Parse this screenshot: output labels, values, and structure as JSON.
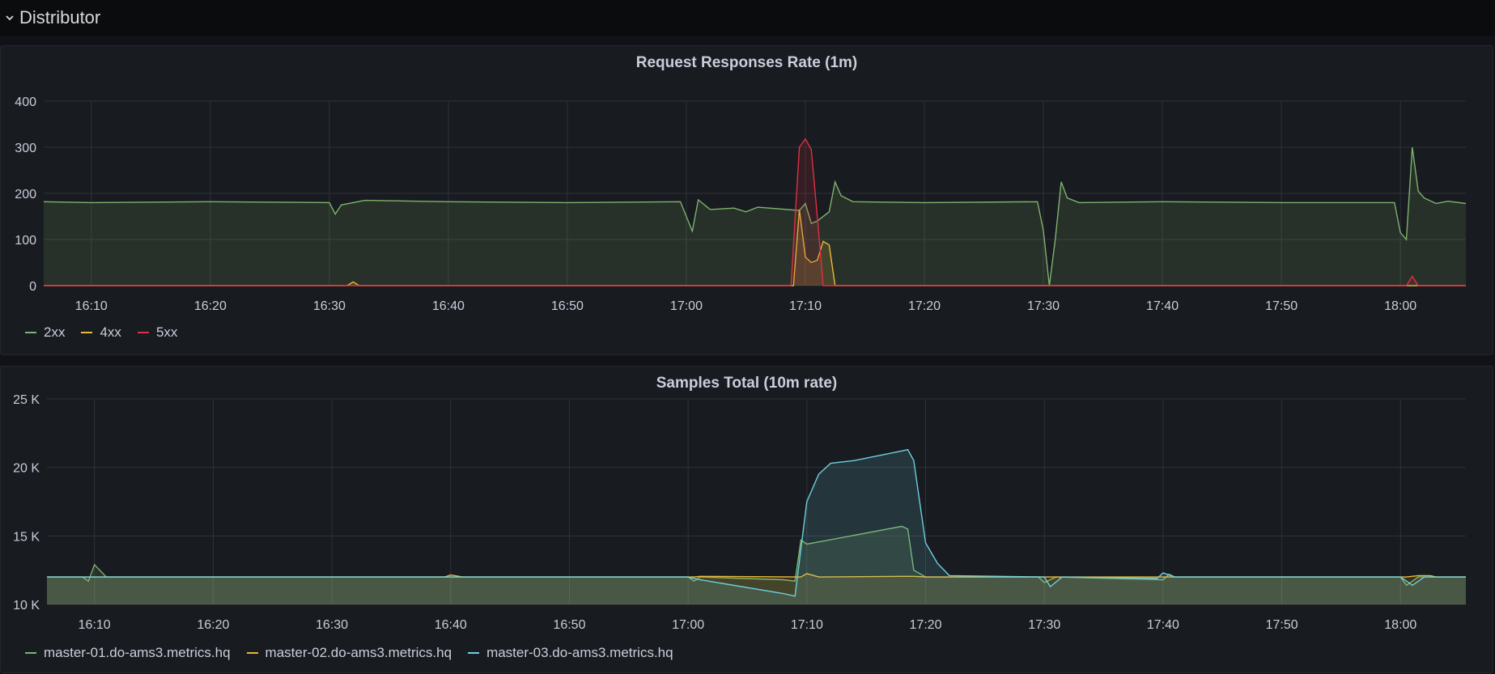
{
  "row": {
    "title": "Distributor",
    "toggle_icon": "chevron-down-icon"
  },
  "panels": [
    {
      "title": "Request Responses Rate (1m)",
      "legend": [
        {
          "label": "2xx",
          "color": "#7eb26d"
        },
        {
          "label": "4xx",
          "color": "#eab839"
        },
        {
          "label": "5xx",
          "color": "#e02f44"
        }
      ]
    },
    {
      "title": "Samples Total (10m rate)",
      "legend": [
        {
          "label": "master-01.do-ams3.metrics.hq",
          "color": "#7eb26d"
        },
        {
          "label": "master-02.do-ams3.metrics.hq",
          "color": "#eab839"
        },
        {
          "label": "master-03.do-ams3.metrics.hq",
          "color": "#6ed0e0"
        }
      ]
    }
  ],
  "chart_data": [
    {
      "type": "area",
      "title": "Request Responses Rate (1m)",
      "ylim": [
        0,
        400
      ],
      "y_ticks": [
        "0",
        "100",
        "200",
        "300",
        "400"
      ],
      "x_ticks": [
        "16:10",
        "16:20",
        "16:30",
        "16:40",
        "16:50",
        "17:00",
        "17:10",
        "17:20",
        "17:30",
        "17:40",
        "17:50",
        "18:00"
      ],
      "grid": true,
      "legend_position": "bottom-left",
      "series": [
        {
          "name": "2xx",
          "color": "#7eb26d",
          "points": [
            [
              "16:06",
              182
            ],
            [
              "16:10",
              180
            ],
            [
              "16:20",
              182
            ],
            [
              "16:30",
              180
            ],
            [
              "16:30.5",
              155
            ],
            [
              "16:31",
              175
            ],
            [
              "16:33",
              185
            ],
            [
              "16:40",
              182
            ],
            [
              "16:50",
              180
            ],
            [
              "16:59.5",
              182
            ],
            [
              "17:00.5",
              118
            ],
            [
              "17:01",
              186
            ],
            [
              "17:02",
              165
            ],
            [
              "17:04",
              168
            ],
            [
              "17:05",
              160
            ],
            [
              "17:06",
              170
            ],
            [
              "17:09.5",
              163
            ],
            [
              "17:10",
              178
            ],
            [
              "17:10.5",
              135
            ],
            [
              "17:11",
              140
            ],
            [
              "17:12",
              160
            ],
            [
              "17:12.5",
              225
            ],
            [
              "17:13",
              195
            ],
            [
              "17:14",
              182
            ],
            [
              "17:20",
              180
            ],
            [
              "17:29.5",
              182
            ],
            [
              "17:30",
              120
            ],
            [
              "17:30.5",
              0
            ],
            [
              "17:31",
              100
            ],
            [
              "17:31.5",
              225
            ],
            [
              "17:32",
              190
            ],
            [
              "17:33",
              180
            ],
            [
              "17:40",
              182
            ],
            [
              "17:50",
              180
            ],
            [
              "17:59.5",
              180
            ],
            [
              "18:00",
              115
            ],
            [
              "18:00.5",
              100
            ],
            [
              "18:01",
              300
            ],
            [
              "18:01.5",
              205
            ],
            [
              "18:02",
              190
            ],
            [
              "18:03",
              178
            ],
            [
              "18:04",
              183
            ],
            [
              "18:05.5",
              178
            ]
          ]
        },
        {
          "name": "4xx",
          "color": "#eab839",
          "points": [
            [
              "16:06",
              0
            ],
            [
              "16:31.5",
              0
            ],
            [
              "16:32",
              8
            ],
            [
              "16:32.5",
              0
            ],
            [
              "17:09",
              0
            ],
            [
              "17:09.5",
              165
            ],
            [
              "17:10",
              62
            ],
            [
              "17:10.5",
              50
            ],
            [
              "17:11",
              55
            ],
            [
              "17:11.5",
              96
            ],
            [
              "17:12",
              88
            ],
            [
              "17:12.5",
              0
            ],
            [
              "18:05.5",
              0
            ]
          ]
        },
        {
          "name": "5xx",
          "color": "#e02f44",
          "points": [
            [
              "16:06",
              0
            ],
            [
              "17:08.8",
              0
            ],
            [
              "17:09.5",
              300
            ],
            [
              "17:10",
              318
            ],
            [
              "17:10.5",
              295
            ],
            [
              "17:11",
              150
            ],
            [
              "17:11.5",
              0
            ],
            [
              "18:00.5",
              0
            ],
            [
              "18:01",
              20
            ],
            [
              "18:01.5",
              0
            ],
            [
              "18:05.5",
              0
            ]
          ]
        }
      ]
    },
    {
      "type": "area",
      "title": "Samples Total (10m rate)",
      "ylim": [
        10000,
        25000
      ],
      "y_ticks": [
        "10 K",
        "15 K",
        "20 K",
        "25 K"
      ],
      "x_ticks": [
        "16:10",
        "16:20",
        "16:30",
        "16:40",
        "16:50",
        "17:00",
        "17:10",
        "17:20",
        "17:30",
        "17:40",
        "17:50",
        "18:00"
      ],
      "grid": true,
      "legend_position": "bottom-left",
      "series": [
        {
          "name": "master-01.do-ams3.metrics.hq",
          "color": "#7eb26d",
          "points": [
            [
              "16:06",
              12000
            ],
            [
              "16:09",
              12000
            ],
            [
              "16:09.5",
              11700
            ],
            [
              "16:10",
              12900
            ],
            [
              "16:11",
              12000
            ],
            [
              "16:40",
              12000
            ],
            [
              "17:00",
              12000
            ],
            [
              "17:00.5",
              11700
            ],
            [
              "17:01",
              12000
            ],
            [
              "17:08",
              11800
            ],
            [
              "17:09",
              11700
            ],
            [
              "17:09.5",
              14700
            ],
            [
              "17:10",
              14400
            ],
            [
              "17:18",
              15700
            ],
            [
              "17:18.5",
              15500
            ],
            [
              "17:19",
              12500
            ],
            [
              "17:20",
              12000
            ],
            [
              "17:29.5",
              12000
            ],
            [
              "17:30",
              11600
            ],
            [
              "17:31",
              12000
            ],
            [
              "17:40",
              11800
            ],
            [
              "17:40.5",
              12200
            ],
            [
              "17:41",
              12000
            ],
            [
              "18:00",
              12000
            ],
            [
              "18:00.5",
              11400
            ],
            [
              "18:01.5",
              12000
            ],
            [
              "18:05.5",
              12000
            ]
          ]
        },
        {
          "name": "master-02.do-ams3.metrics.hq",
          "color": "#eab839",
          "points": [
            [
              "16:06",
              12000
            ],
            [
              "16:39.5",
              12000
            ],
            [
              "16:40",
              12150
            ],
            [
              "16:41",
              12000
            ],
            [
              "17:00.5",
              12000
            ],
            [
              "17:01",
              12050
            ],
            [
              "17:09.5",
              12000
            ],
            [
              "17:10",
              12250
            ],
            [
              "17:11",
              12000
            ],
            [
              "17:18",
              12050
            ],
            [
              "17:19",
              12050
            ],
            [
              "17:20",
              12000
            ],
            [
              "18:00.5",
              12000
            ],
            [
              "18:01.5",
              12100
            ],
            [
              "18:02.5",
              12100
            ],
            [
              "18:03",
              12000
            ],
            [
              "18:05.5",
              12000
            ]
          ]
        },
        {
          "name": "master-03.do-ams3.metrics.hq",
          "color": "#6ed0e0",
          "points": [
            [
              "16:06",
              12000
            ],
            [
              "17:00",
              12000
            ],
            [
              "17:01",
              11800
            ],
            [
              "17:08",
              10800
            ],
            [
              "17:09",
              10600
            ],
            [
              "17:10",
              17500
            ],
            [
              "17:11",
              19500
            ],
            [
              "17:12",
              20300
            ],
            [
              "17:14",
              20500
            ],
            [
              "17:18",
              21200
            ],
            [
              "17:18.5",
              21300
            ],
            [
              "17:19",
              20500
            ],
            [
              "17:20",
              14500
            ],
            [
              "17:21",
              13000
            ],
            [
              "17:22",
              12100
            ],
            [
              "17:30",
              12000
            ],
            [
              "17:30.5",
              11300
            ],
            [
              "17:31.5",
              12000
            ],
            [
              "17:39.5",
              11900
            ],
            [
              "17:40",
              12300
            ],
            [
              "17:41",
              12000
            ],
            [
              "18:00",
              12000
            ],
            [
              "18:01",
              11400
            ],
            [
              "18:02",
              12000
            ],
            [
              "18:05.5",
              12000
            ]
          ]
        }
      ]
    }
  ]
}
